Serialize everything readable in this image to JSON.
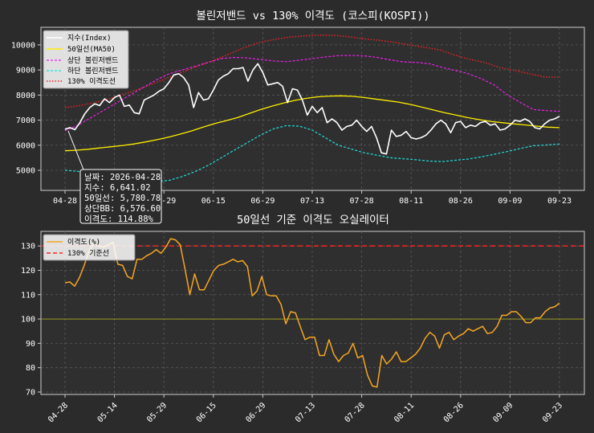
{
  "charts": {
    "top": {
      "title": "볼린저밴드 vs 130% 이격도 (코스피(KOSPI))",
      "yticks": [
        "5000",
        "6000",
        "7000",
        "8000",
        "9000",
        "10000"
      ],
      "legend": [
        "지수(Index)",
        "50일선(MA50)",
        "상단 볼린저밴드",
        "하단 볼린저밴드",
        "130% 이격도선"
      ],
      "tooltip": [
        "날짜: 2026-04-28",
        "지수: 6,641.02",
        "50일선: 5,780.78",
        "상단BB: 6,576.60",
        "이격도: 114.88%"
      ]
    },
    "bottom": {
      "title": "50일선 기준 이격도 오실레이터",
      "yticks": [
        "70",
        "80",
        "90",
        "100",
        "110",
        "120",
        "130"
      ],
      "legend": [
        "이격도(%)",
        "130% 기준선"
      ]
    },
    "xticks_top": [
      "04-28",
      "05-14",
      "05-29",
      "06-15",
      "06-29",
      "07-13",
      "07-28",
      "08-11",
      "08-26",
      "09-09",
      "09-23"
    ],
    "xticks_bottom": [
      "04-28",
      "05-14",
      "05-29",
      "06-15",
      "06-29",
      "07-13",
      "07-28",
      "08-11",
      "08-26",
      "09-09",
      "09-23"
    ]
  },
  "chart_data": [
    {
      "type": "line",
      "title": "볼린저밴드 vs 130% 이격도 (코스피(KOSPI))",
      "x_range": [
        "2026-04-28",
        "2026-09-23"
      ],
      "ylim": [
        4200,
        10700
      ],
      "grid": true,
      "legend_position": "top-left",
      "colors": {
        "index": "#ffffff",
        "ma50": "#ffee00",
        "upper": "#ee22ee",
        "lower": "#22dddd",
        "line130": "#ee2222"
      },
      "series": [
        {
          "name": "지수(Index)",
          "values": [
            6641,
            6700,
            6620,
            6900,
            7250,
            7500,
            7650,
            7580,
            7850,
            7700,
            7900,
            8000,
            7550,
            7600,
            7300,
            7250,
            7800,
            7900,
            8000,
            8150,
            8250,
            8500,
            8800,
            8850,
            8700,
            8400,
            7500,
            8100,
            7800,
            7850,
            8200,
            8600,
            8750,
            8850,
            9050,
            9050,
            9100,
            8550,
            9000,
            9250,
            8900,
            8400,
            8450,
            8500,
            8350,
            7700,
            8250,
            8200,
            7800,
            7200,
            7550,
            7300,
            7500,
            6900,
            7050,
            6900,
            6600,
            6750,
            6800,
            7000,
            6750,
            6550,
            6750,
            6300,
            5700,
            5650,
            6600,
            6350,
            6400,
            6550,
            6300,
            6250,
            6300,
            6400,
            6600,
            6850,
            7000,
            6850,
            6500,
            6900,
            6950,
            6700,
            6800,
            6750,
            6900,
            6950,
            6800,
            6850,
            6600,
            6650,
            6800,
            7000,
            6950,
            7050,
            6950,
            6700,
            6650,
            6850,
            7000,
            7050,
            7150
          ]
        },
        {
          "name": "50일선(MA50)",
          "values": [
            5780,
            5800,
            5840,
            5890,
            5940,
            5990,
            6050,
            6130,
            6220,
            6320,
            6440,
            6570,
            6720,
            6860,
            6980,
            7100,
            7260,
            7420,
            7560,
            7680,
            7790,
            7870,
            7930,
            7960,
            7970,
            7950,
            7900,
            7840,
            7780,
            7720,
            7630,
            7520,
            7410,
            7300,
            7200,
            7100,
            7020,
            6950,
            6900,
            6850,
            6810,
            6760,
            6720,
            6700
          ]
        },
        {
          "name": "상단 볼린저밴드",
          "values": [
            6577,
            6800,
            7100,
            7400,
            7700,
            8000,
            8300,
            8600,
            8850,
            9000,
            9150,
            9300,
            9450,
            9500,
            9480,
            9420,
            9360,
            9330,
            9390,
            9450,
            9520,
            9570,
            9580,
            9560,
            9500,
            9400,
            9320,
            9300,
            9250,
            9100,
            8980,
            8850,
            8650,
            8400,
            8000,
            7700,
            7420,
            7380,
            7350
          ]
        },
        {
          "name": "하단 볼린저밴드",
          "values": [
            5000,
            4960,
            4900,
            4820,
            4740,
            4650,
            4580,
            4550,
            4600,
            4750,
            4950,
            5200,
            5500,
            5800,
            6100,
            6400,
            6650,
            6780,
            6760,
            6600,
            6300,
            6000,
            5850,
            5700,
            5600,
            5500,
            5460,
            5420,
            5370,
            5350,
            5400,
            5450,
            5540,
            5640,
            5750,
            5870,
            5980,
            6010,
            6050
          ]
        },
        {
          "name": "130% 이격도선",
          "values": [
            7500,
            7580,
            7700,
            7860,
            8050,
            8250,
            8480,
            8720,
            8950,
            9180,
            9400,
            9650,
            9900,
            10100,
            10220,
            10310,
            10360,
            10390,
            10380,
            10320,
            10240,
            10180,
            10100,
            10000,
            9900,
            9800,
            9600,
            9420,
            9300,
            9100,
            8980,
            8850,
            8720,
            8710
          ]
        }
      ]
    },
    {
      "type": "line",
      "title": "50일선 기준 이격도 오실레이터",
      "x_range": [
        "2026-04-28",
        "2026-09-23"
      ],
      "ylim": [
        69,
        136
      ],
      "grid": true,
      "legend_position": "top-left",
      "reference_lines": [
        {
          "name": "130% 기준선",
          "y": 130,
          "color": "#ff2222"
        },
        {
          "y": 100,
          "color": "#999922"
        }
      ],
      "series": [
        {
          "name": "이격도(%)",
          "values": [
            114.88,
            115.2,
            113.5,
            117,
            122,
            128,
            131,
            130,
            129.5,
            130.5,
            131.5,
            122.5,
            122,
            117.5,
            116.5,
            124.5,
            124.5,
            126,
            127,
            128.5,
            127,
            129.5,
            133,
            132.5,
            130.5,
            120.5,
            110,
            118.5,
            112,
            112,
            116,
            120,
            122,
            122.5,
            123.5,
            124.5,
            123.5,
            124,
            121.5,
            109.5,
            111.5,
            117.5,
            110,
            109.5,
            109.5,
            106,
            98,
            103,
            102.5,
            97,
            91.5,
            92.5,
            92.5,
            85,
            85,
            91.5,
            85.5,
            82.5,
            85,
            86,
            90,
            84,
            85,
            77,
            72.5,
            72,
            85,
            81.5,
            83.5,
            86.5,
            82.5,
            82.5,
            84,
            85.5,
            88,
            92,
            94.5,
            93,
            88,
            93.5,
            94.5,
            91.5,
            93,
            94,
            96,
            95,
            96,
            97,
            94,
            94.5,
            97,
            101.5,
            101.5,
            103,
            103,
            101,
            98.5,
            98.5,
            100.5,
            100.5,
            103,
            104.5,
            105,
            106.5
          ]
        }
      ]
    }
  ]
}
